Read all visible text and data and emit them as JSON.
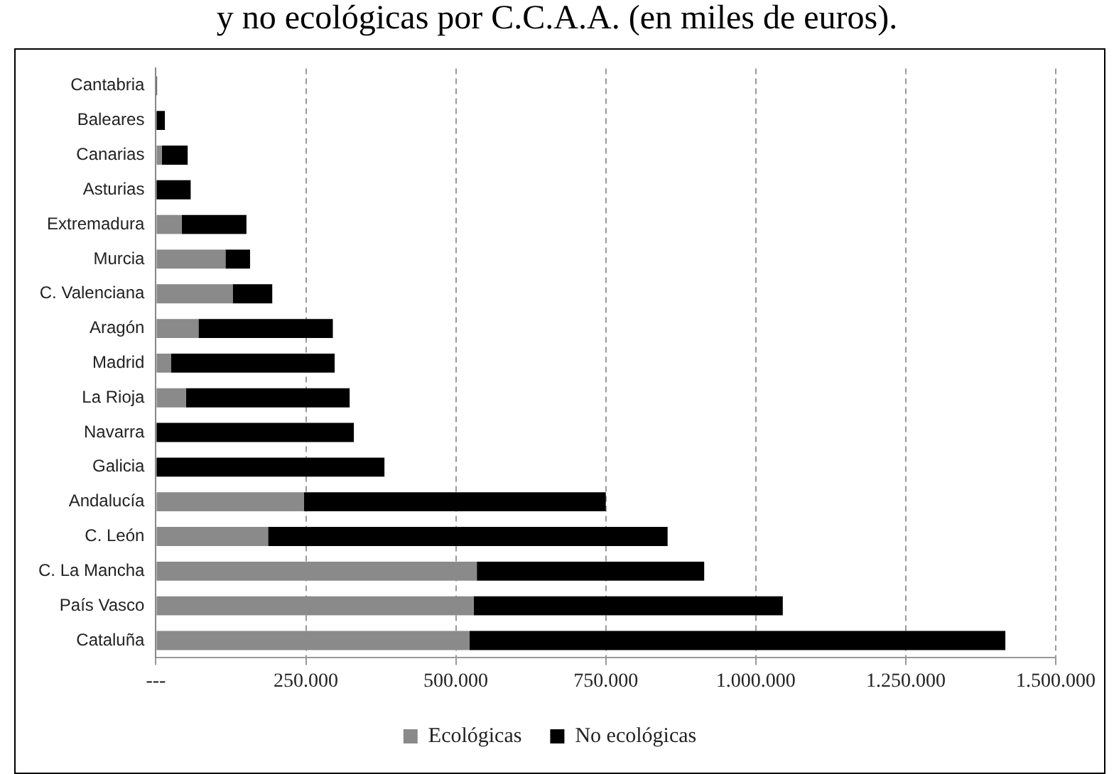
{
  "chart_data": {
    "type": "bar",
    "orientation": "horizontal",
    "stacked": true,
    "title": "y no ecológicas por C.C.A.A. (en miles de euros).",
    "categories": [
      "Cantabria",
      "Baleares",
      "Canarias",
      "Asturias",
      "Extremadura",
      "Murcia",
      "C. Valenciana",
      "Aragón",
      "Madrid",
      "La Rioja",
      "Navarra",
      "Galicia",
      "Andalucía",
      "C. León",
      "C. La Mancha",
      "País Vasco",
      "Cataluña"
    ],
    "series": [
      {
        "name": "Ecológicas",
        "color": "#8a8a8a",
        "values": [
          0,
          0,
          10000,
          0,
          43000,
          116000,
          128000,
          71000,
          25000,
          50000,
          0,
          0,
          247000,
          187000,
          535000,
          530000,
          523000
        ]
      },
      {
        "name": "No ecológicas",
        "color": "#000000",
        "values": [
          2000,
          15000,
          43000,
          58000,
          108000,
          41000,
          66000,
          224000,
          273000,
          273000,
          330000,
          381000,
          503000,
          666000,
          379000,
          515000,
          893000
        ]
      }
    ],
    "xlim": [
      0,
      1500000
    ],
    "xticks": [
      {
        "value": 0,
        "label": "---"
      },
      {
        "value": 250000,
        "label": "250.000"
      },
      {
        "value": 500000,
        "label": "500.000"
      },
      {
        "value": 750000,
        "label": "750.000"
      },
      {
        "value": 1000000,
        "label": "1.000.000"
      },
      {
        "value": 1250000,
        "label": "1.250.000"
      },
      {
        "value": 1500000,
        "label": "1.500.000"
      }
    ],
    "grid": "x",
    "legend": "bottom"
  }
}
